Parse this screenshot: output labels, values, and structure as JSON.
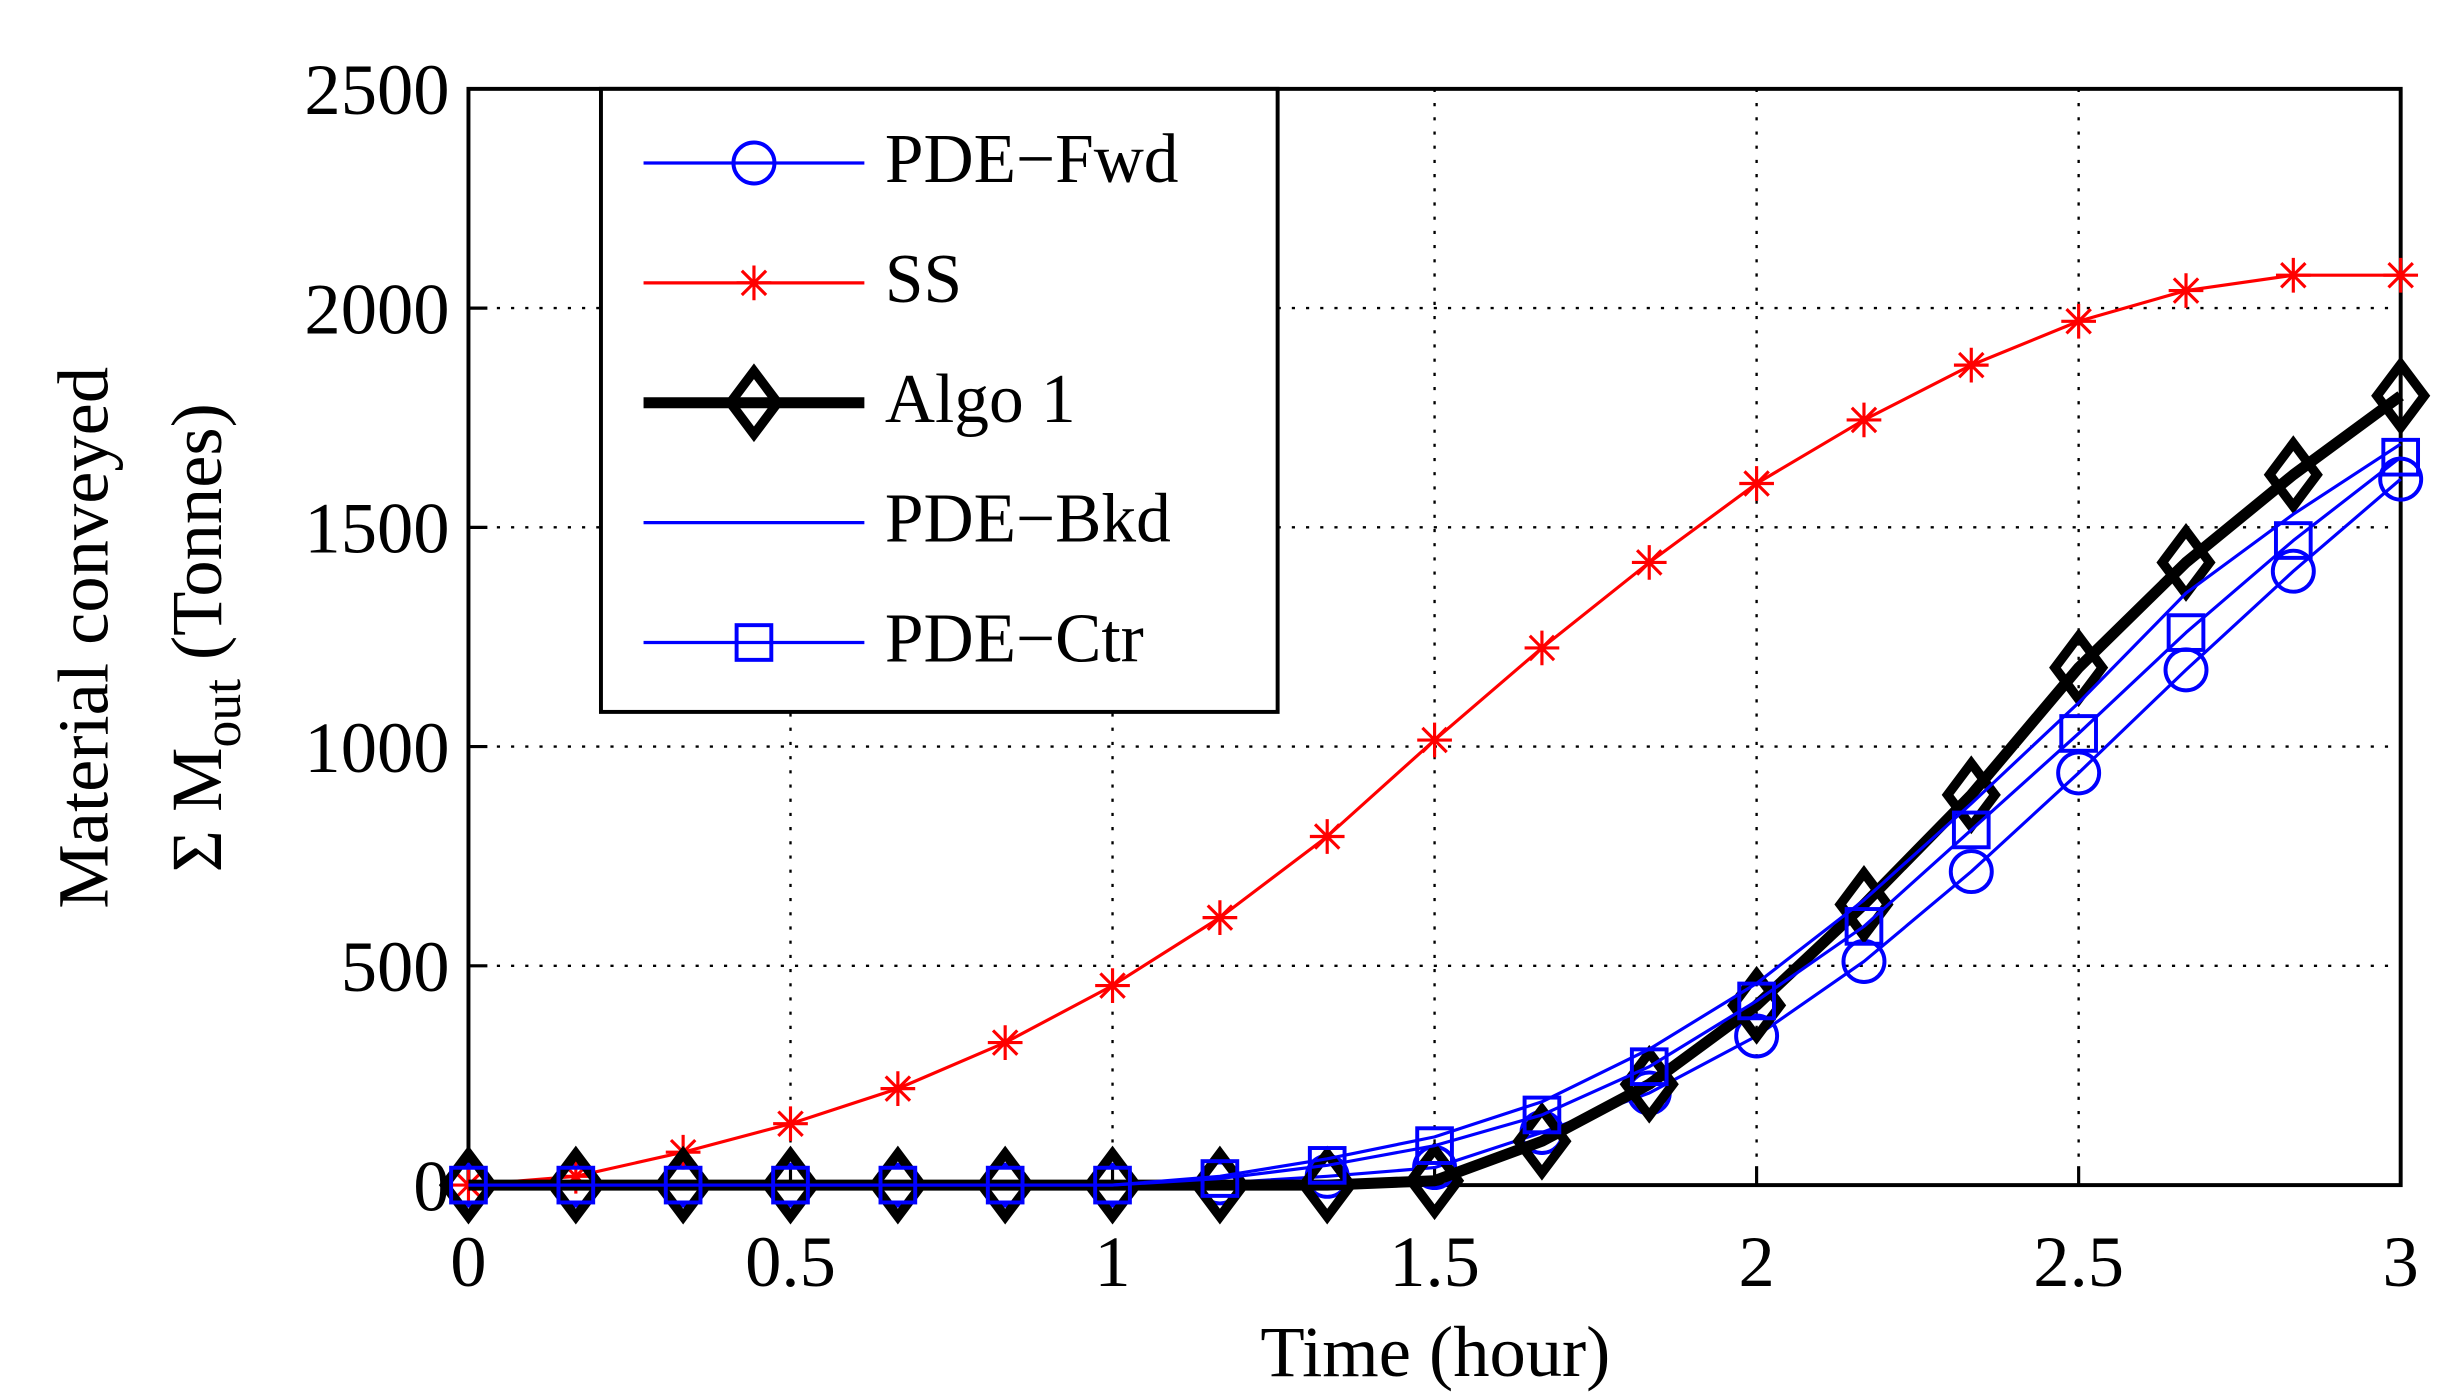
{
  "chart_data": {
    "type": "line",
    "xlabel": "Time (hour)",
    "ylabel": "Material conveyed",
    "ylabel2": {
      "main": "Σ M",
      "sub": "out",
      "unit": "(Tonnes)"
    },
    "x": [
      0,
      0.1667,
      0.3333,
      0.5,
      0.6667,
      0.8333,
      1,
      1.1667,
      1.3333,
      1.5,
      1.6667,
      1.8333,
      2,
      2.1667,
      2.3333,
      2.5,
      2.6667,
      2.8333,
      3
    ],
    "xlim": [
      0,
      3
    ],
    "xticks": [
      0,
      0.5,
      1,
      1.5,
      2,
      2.5,
      3
    ],
    "ylim": [
      0,
      2500
    ],
    "yticks": [
      0,
      500,
      1000,
      1500,
      2000,
      2500
    ],
    "grid": true,
    "legend": "upper left",
    "series": [
      {
        "name": "PDE−Fwd",
        "color": "#0000ff",
        "marker": "circle",
        "linewidth": 2,
        "values": [
          0,
          0,
          0,
          0,
          0,
          0,
          0,
          5,
          20,
          40,
          120,
          210,
          340,
          510,
          715,
          940,
          1175,
          1400,
          1610
        ]
      },
      {
        "name": "SS",
        "color": "#ff0000",
        "marker": "star",
        "linewidth": 2,
        "values": [
          0,
          20,
          75,
          140,
          220,
          325,
          455,
          610,
          795,
          1015,
          1225,
          1420,
          1600,
          1745,
          1870,
          1970,
          2040,
          2075,
          2075
        ]
      },
      {
        "name": "Algo 1",
        "color": "#000000",
        "marker": "diamond",
        "linewidth": 7,
        "values": [
          0,
          0,
          0,
          0,
          0,
          0,
          0,
          0,
          0,
          10,
          100,
          230,
          410,
          640,
          890,
          1180,
          1420,
          1620,
          1800
        ]
      },
      {
        "name": "PDE−Bkd",
        "color": "#0000ff",
        "marker": "none",
        "linewidth": 2,
        "values": [
          0,
          0,
          0,
          0,
          0,
          0,
          0,
          20,
          60,
          110,
          190,
          310,
          460,
          650,
          870,
          1100,
          1350,
          1530,
          1690
        ]
      },
      {
        "name": "PDE−Ctr",
        "color": "#0000ff",
        "marker": "square",
        "linewidth": 2,
        "values": [
          0,
          0,
          0,
          0,
          0,
          0,
          0,
          15,
          45,
          90,
          160,
          270,
          420,
          590,
          810,
          1030,
          1260,
          1470,
          1660
        ]
      }
    ]
  }
}
